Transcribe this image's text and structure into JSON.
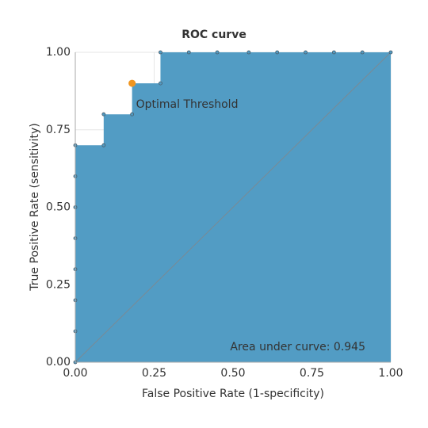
{
  "chart_data": {
    "type": "area",
    "title": "ROC curve",
    "x_label": "False Positive Rate (1-specificity)",
    "y_label": "True Positive Rate (sensitivity)",
    "x": [
      0,
      0,
      0,
      0,
      0,
      0,
      0,
      0,
      0.09,
      0.09,
      0.18,
      0.18,
      0.27,
      0.27,
      0.36,
      0.45,
      0.55,
      0.64,
      0.73,
      0.82,
      0.91,
      1
    ],
    "y": [
      0,
      0.1,
      0.2,
      0.3,
      0.4,
      0.5,
      0.6,
      0.7,
      0.7,
      0.8,
      0.8,
      0.9,
      0.9,
      1,
      1,
      1,
      1,
      1,
      1,
      1,
      1,
      1
    ],
    "color": "#529cc4",
    "optimal_point": {
      "x": 0.18,
      "y": 0.9,
      "label": "Optimal Threshold",
      "color": "#f0951f"
    },
    "annotation": "Area under curve: 0.945",
    "xlim": [
      0,
      1
    ],
    "ylim": [
      0,
      1
    ],
    "xticks": [
      {
        "value": 0,
        "label": "0.00"
      },
      {
        "value": 0.25,
        "label": "0.25"
      },
      {
        "value": 0.5,
        "label": "0.50"
      },
      {
        "value": 0.75,
        "label": "0.75"
      },
      {
        "value": 1,
        "label": "1.00"
      }
    ],
    "yticks": [
      {
        "value": 0,
        "label": "0.00"
      },
      {
        "value": 0.25,
        "label": "0.25"
      },
      {
        "value": 0.5,
        "label": "0.50"
      },
      {
        "value": 0.75,
        "label": "0.75"
      },
      {
        "value": 1,
        "label": "1.00"
      }
    ],
    "grid": true
  }
}
